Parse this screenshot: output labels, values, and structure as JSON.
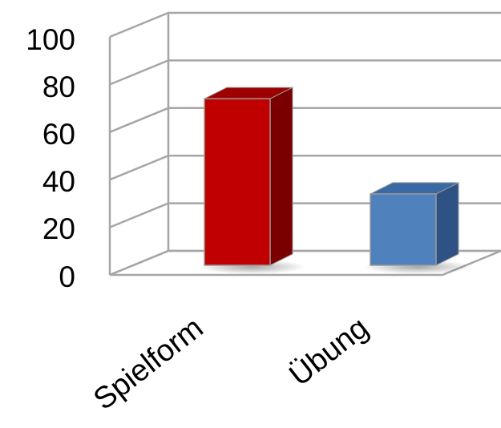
{
  "chart_data": {
    "type": "bar",
    "categories": [
      "Spielform",
      "Übung"
    ],
    "values": [
      70,
      30
    ],
    "ylim": [
      0,
      100
    ],
    "y_ticks": [
      "0",
      "20",
      "40",
      "60",
      "80",
      "100"
    ],
    "y_tick_values": [
      0,
      20,
      40,
      60,
      80,
      100
    ],
    "grid": true,
    "style": "3d-column",
    "colors": {
      "grid": "#a6a6a6",
      "series_fronts": [
        "#c00000",
        "#4f81bd"
      ],
      "series_sides": [
        "#7a0000",
        "#2f5285"
      ],
      "series_tops": [
        "#9e0000",
        "#3a6aa3"
      ]
    }
  }
}
